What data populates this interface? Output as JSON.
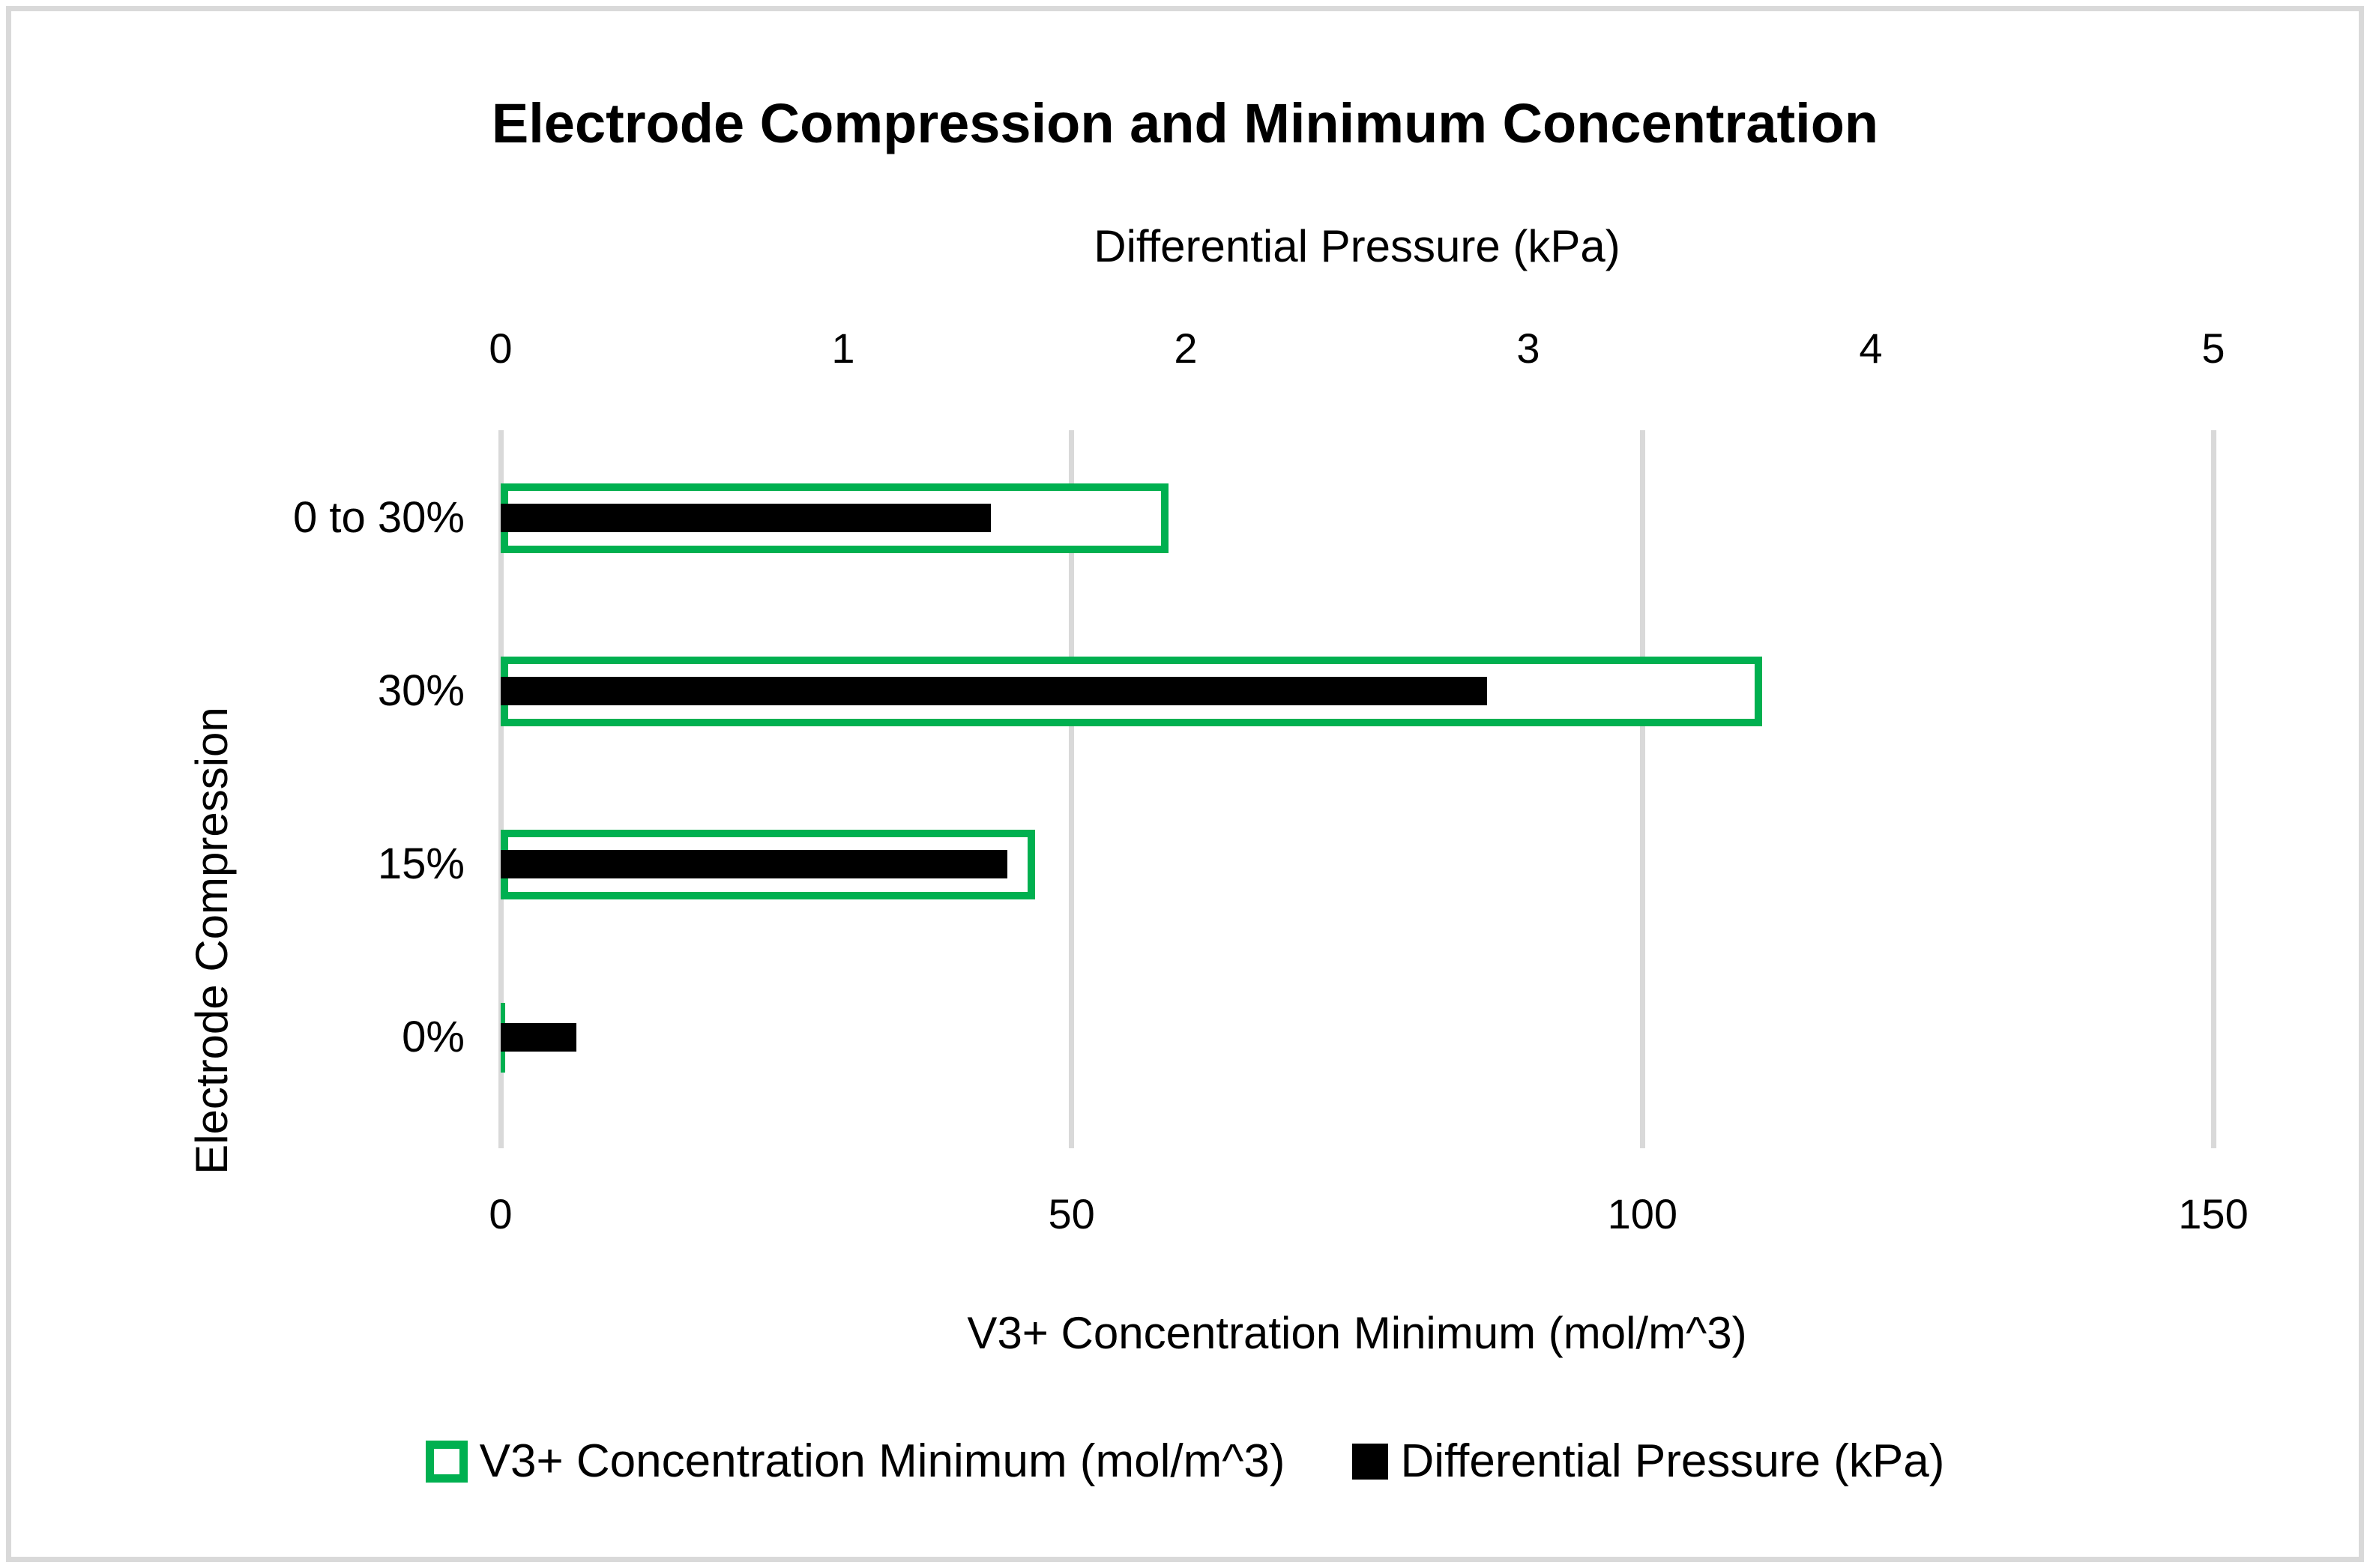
{
  "chart_data": {
    "type": "bar",
    "orientation": "horizontal",
    "title": "Electrode Compression and Minimum Concentration",
    "ylabel": "Electrode Compression",
    "xlabel": "V3+ Concentration Minimum (mol/m^3)",
    "x2label": "Differential Pressure (kPa)",
    "categories": [
      "0 to 30%",
      "30%",
      "15%",
      "0%"
    ],
    "series": [
      {
        "name": "V3+ Concentration Minimum (mol/m^3)",
        "axis": "bottom",
        "style": "green-outline",
        "color": "#00B050",
        "values": [
          58.5,
          110.5,
          46.8,
          0.3
        ]
      },
      {
        "name": "Differential Pressure (kPa)",
        "axis": "top",
        "style": "solid-fill",
        "color": "#000000",
        "values": [
          1.43,
          2.88,
          1.48,
          0.22
        ]
      }
    ],
    "axes": {
      "top": {
        "label": "Differential Pressure (kPa)",
        "min": 0,
        "max": 5,
        "ticks": [
          0,
          1,
          2,
          3,
          4,
          5
        ]
      },
      "bottom": {
        "label": "V3+ Concentration Minimum (mol/m^3)",
        "min": 0,
        "max": 150,
        "ticks": [
          0,
          50,
          100,
          150
        ]
      }
    },
    "grid": {
      "vertical_gridlines_at_bottom_ticks": true,
      "horizontal_gridlines": false
    },
    "legend_position": "bottom",
    "colors": {
      "series_concentration": "#00B050",
      "series_pressure": "#000000",
      "gridline": "#D9D9D9",
      "page_border": "#D9D9D9",
      "text": "#000000",
      "background": "#FFFFFF"
    }
  }
}
